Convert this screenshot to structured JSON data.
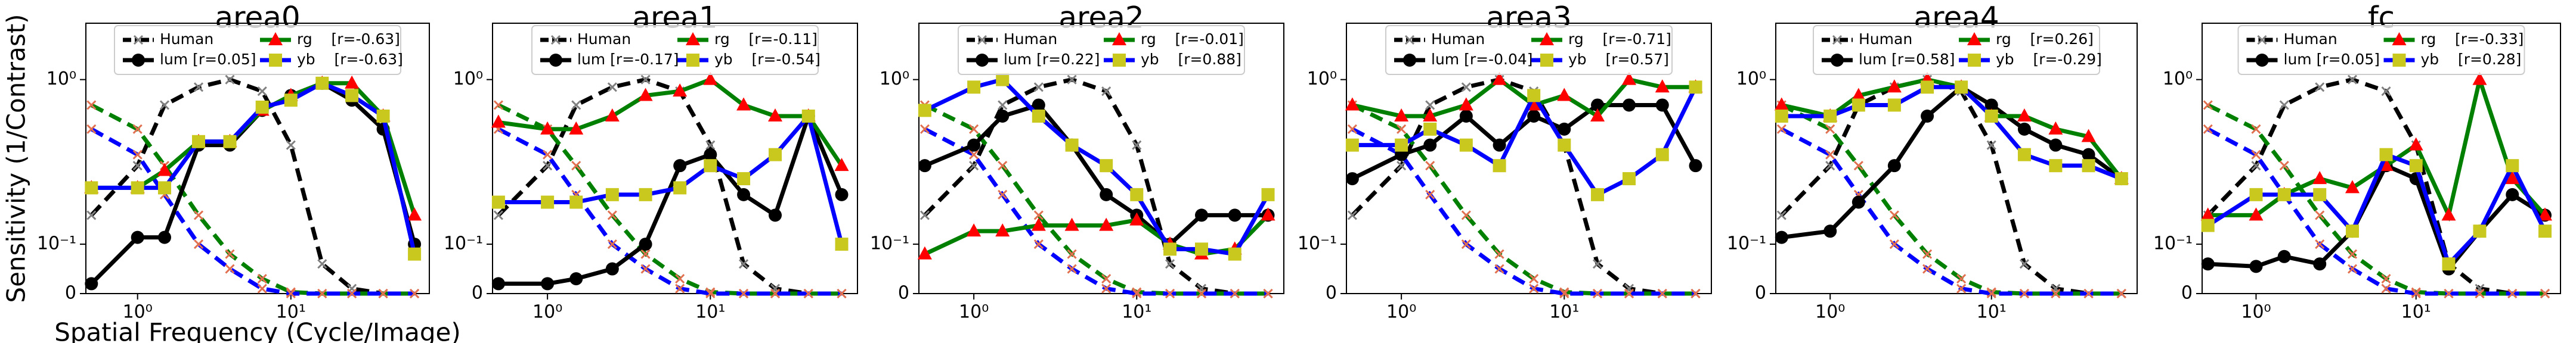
{
  "chart_data": [
    {
      "type": "line",
      "title": "area0",
      "ylabel": "Sensitivity (1/Contrast)",
      "xlabel": "Spatial Frequency (Cycle/Image)",
      "xscale": "log",
      "yscale": "symlog",
      "linthresh": 0.1,
      "legend": "upper center",
      "xlim": [
        0.46,
        80
      ],
      "ylim": [
        0,
        2.2
      ],
      "xticks": [
        {
          "value": 1,
          "label": "10⁰"
        },
        {
          "value": 10,
          "label": "10¹"
        }
      ],
      "yticks": [
        0,
        {
          "value": 0.1,
          "label": "10⁻¹"
        },
        {
          "value": 1,
          "label": "10⁰"
        }
      ],
      "x": [
        0.5,
        1,
        1.5,
        2.5,
        4,
        6.5,
        10,
        16,
        25,
        40,
        64
      ],
      "series": [
        {
          "name": "Human",
          "color": "#000000",
          "marker_color": "#808080",
          "marker": "x",
          "dash": true,
          "values": [
            0.15,
            0.3,
            0.7,
            0.9,
            1.0,
            0.85,
            0.4,
            0.06,
            0.01,
            0,
            0
          ]
        },
        {
          "color": "#008000",
          "marker_color": "#e07050",
          "marker": "x",
          "dash": true,
          "values": [
            0.7,
            0.5,
            0.3,
            0.15,
            0.08,
            0.03,
            0.003,
            0,
            0,
            0,
            0
          ]
        },
        {
          "color": "#0000ff",
          "marker_color": "#e07050",
          "marker": "x",
          "dash": true,
          "values": [
            0.5,
            0.35,
            0.2,
            0.1,
            0.05,
            0.01,
            0,
            0,
            0,
            0,
            0
          ]
        },
        {
          "name": "lum [r=0.05]",
          "color": "#000000",
          "marker_color": "#000000",
          "marker": "o",
          "values": [
            0.02,
            0.11,
            0.11,
            0.4,
            0.4,
            0.65,
            0.8,
            0.95,
            0.75,
            0.5,
            0.1
          ]
        },
        {
          "name": "rg    [r=-0.63]",
          "color": "#008000",
          "marker_color": "#ff0000",
          "marker": "^",
          "values": [
            0.22,
            0.22,
            0.28,
            0.42,
            0.42,
            0.65,
            0.8,
            0.95,
            0.95,
            0.6,
            0.15
          ]
        },
        {
          "name": "yb    [r=-0.63]",
          "color": "#0000ff",
          "marker_color": "#c8c81e",
          "marker": "s",
          "values": [
            0.22,
            0.22,
            0.22,
            0.42,
            0.42,
            0.68,
            0.75,
            0.95,
            0.8,
            0.6,
            0.08
          ]
        }
      ]
    },
    {
      "type": "line",
      "title": "area1",
      "xscale": "log",
      "yscale": "symlog",
      "linthresh": 0.1,
      "legend": "upper center",
      "xlim": [
        0.46,
        80
      ],
      "ylim": [
        0,
        2.2
      ],
      "xticks": [
        {
          "value": 1,
          "label": "10⁰"
        },
        {
          "value": 10,
          "label": "10¹"
        }
      ],
      "yticks": [
        0,
        {
          "value": 0.1,
          "label": "10⁻¹"
        },
        {
          "value": 1,
          "label": "10⁰"
        }
      ],
      "x": [
        0.5,
        1,
        1.5,
        2.5,
        4,
        6.5,
        10,
        16,
        25,
        40,
        64
      ],
      "series": [
        {
          "name": "Human",
          "color": "#000000",
          "marker_color": "#808080",
          "marker": "x",
          "dash": true,
          "values": [
            0.15,
            0.3,
            0.7,
            0.9,
            1.0,
            0.85,
            0.4,
            0.06,
            0.01,
            0,
            0
          ]
        },
        {
          "color": "#008000",
          "marker_color": "#e07050",
          "marker": "x",
          "dash": true,
          "values": [
            0.7,
            0.5,
            0.3,
            0.15,
            0.08,
            0.03,
            0.003,
            0,
            0,
            0,
            0
          ]
        },
        {
          "color": "#0000ff",
          "marker_color": "#e07050",
          "marker": "x",
          "dash": true,
          "values": [
            0.5,
            0.35,
            0.2,
            0.1,
            0.05,
            0.01,
            0,
            0,
            0,
            0,
            0
          ]
        },
        {
          "name": "lum [r=-0.17]",
          "color": "#000000",
          "marker_color": "#000000",
          "marker": "o",
          "values": [
            0.02,
            0.02,
            0.03,
            0.05,
            0.1,
            0.3,
            0.35,
            0.2,
            0.15,
            0.6,
            0.2
          ]
        },
        {
          "name": "rg    [r=-0.11]",
          "color": "#008000",
          "marker_color": "#ff0000",
          "marker": "^",
          "values": [
            0.55,
            0.5,
            0.5,
            0.6,
            0.8,
            0.85,
            1.0,
            0.7,
            0.6,
            0.6,
            0.3
          ]
        },
        {
          "name": "yb    [r=-0.54]",
          "color": "#0000ff",
          "marker_color": "#c8c81e",
          "marker": "s",
          "values": [
            0.18,
            0.18,
            0.18,
            0.2,
            0.2,
            0.22,
            0.3,
            0.25,
            0.35,
            0.6,
            0.1
          ]
        }
      ]
    },
    {
      "type": "line",
      "title": "area2",
      "xscale": "log",
      "yscale": "symlog",
      "linthresh": 0.1,
      "legend": "upper center",
      "xlim": [
        0.46,
        80
      ],
      "ylim": [
        0,
        2.2
      ],
      "xticks": [
        {
          "value": 1,
          "label": "10⁰"
        },
        {
          "value": 10,
          "label": "10¹"
        }
      ],
      "yticks": [
        0,
        {
          "value": 0.1,
          "label": "10⁻¹"
        },
        {
          "value": 1,
          "label": "10⁰"
        }
      ],
      "x": [
        0.5,
        1,
        1.5,
        2.5,
        4,
        6.5,
        10,
        16,
        25,
        40,
        64
      ],
      "series": [
        {
          "name": "Human",
          "color": "#000000",
          "marker_color": "#808080",
          "marker": "x",
          "dash": true,
          "values": [
            0.15,
            0.3,
            0.7,
            0.9,
            1.0,
            0.85,
            0.4,
            0.06,
            0.01,
            0,
            0
          ]
        },
        {
          "color": "#008000",
          "marker_color": "#e07050",
          "marker": "x",
          "dash": true,
          "values": [
            0.7,
            0.5,
            0.3,
            0.15,
            0.08,
            0.03,
            0.003,
            0,
            0,
            0,
            0
          ]
        },
        {
          "color": "#0000ff",
          "marker_color": "#e07050",
          "marker": "x",
          "dash": true,
          "values": [
            0.5,
            0.35,
            0.2,
            0.1,
            0.05,
            0.01,
            0,
            0,
            0,
            0,
            0
          ]
        },
        {
          "name": "lum [r=0.22]",
          "color": "#000000",
          "marker_color": "#000000",
          "marker": "o",
          "values": [
            0.3,
            0.4,
            0.6,
            0.7,
            0.4,
            0.2,
            0.15,
            0.1,
            0.15,
            0.15,
            0.15
          ]
        },
        {
          "name": "rg    [r=-0.01]",
          "color": "#008000",
          "marker_color": "#ff0000",
          "marker": "^",
          "values": [
            0.08,
            0.12,
            0.12,
            0.13,
            0.13,
            0.13,
            0.14,
            0.1,
            0.08,
            0.09,
            0.15
          ]
        },
        {
          "name": "yb    [r=0.88]",
          "color": "#0000ff",
          "marker_color": "#c8c81e",
          "marker": "s",
          "values": [
            0.65,
            0.9,
            1.0,
            0.6,
            0.4,
            0.3,
            0.2,
            0.09,
            0.09,
            0.08,
            0.2
          ]
        }
      ]
    },
    {
      "type": "line",
      "title": "area3",
      "xscale": "log",
      "yscale": "symlog",
      "linthresh": 0.1,
      "legend": "upper center",
      "xlim": [
        0.46,
        80
      ],
      "ylim": [
        0,
        2.2
      ],
      "xticks": [
        {
          "value": 1,
          "label": "10⁰"
        },
        {
          "value": 10,
          "label": "10¹"
        }
      ],
      "yticks": [
        0,
        {
          "value": 0.1,
          "label": "10⁻¹"
        },
        {
          "value": 1,
          "label": "10⁰"
        }
      ],
      "x": [
        0.5,
        1,
        1.5,
        2.5,
        4,
        6.5,
        10,
        16,
        25,
        40,
        64
      ],
      "series": [
        {
          "name": "Human",
          "color": "#000000",
          "marker_color": "#808080",
          "marker": "x",
          "dash": true,
          "values": [
            0.15,
            0.3,
            0.7,
            0.9,
            1.0,
            0.85,
            0.4,
            0.06,
            0.01,
            0,
            0
          ]
        },
        {
          "color": "#008000",
          "marker_color": "#e07050",
          "marker": "x",
          "dash": true,
          "values": [
            0.7,
            0.5,
            0.3,
            0.15,
            0.08,
            0.03,
            0.003,
            0,
            0,
            0,
            0
          ]
        },
        {
          "color": "#0000ff",
          "marker_color": "#e07050",
          "marker": "x",
          "dash": true,
          "values": [
            0.5,
            0.35,
            0.2,
            0.1,
            0.05,
            0.01,
            0,
            0,
            0,
            0,
            0
          ]
        },
        {
          "name": "lum [r=-0.04]",
          "color": "#000000",
          "marker_color": "#000000",
          "marker": "o",
          "values": [
            0.25,
            0.35,
            0.4,
            0.6,
            0.4,
            0.6,
            0.5,
            0.7,
            0.7,
            0.7,
            0.3
          ]
        },
        {
          "name": "rg    [r=-0.71]",
          "color": "#008000",
          "marker_color": "#ff0000",
          "marker": "^",
          "values": [
            0.7,
            0.6,
            0.6,
            0.7,
            1.0,
            0.7,
            0.8,
            0.6,
            1.0,
            0.9,
            0.9
          ]
        },
        {
          "name": "yb    [r=0.57]",
          "color": "#0000ff",
          "marker_color": "#c8c81e",
          "marker": "s",
          "values": [
            0.4,
            0.4,
            0.5,
            0.4,
            0.3,
            0.8,
            0.4,
            0.2,
            0.25,
            0.35,
            0.9
          ]
        }
      ]
    },
    {
      "type": "line",
      "title": "area4",
      "xscale": "log",
      "yscale": "symlog",
      "linthresh": 0.1,
      "legend": "upper center",
      "xlim": [
        0.46,
        80
      ],
      "ylim": [
        0,
        2.2
      ],
      "xticks": [
        {
          "value": 1,
          "label": "10⁰"
        },
        {
          "value": 10,
          "label": "10¹"
        }
      ],
      "yticks": [
        0,
        {
          "value": 0.1,
          "label": "10⁻¹"
        },
        {
          "value": 1,
          "label": "10⁰"
        }
      ],
      "x": [
        0.5,
        1,
        1.5,
        2.5,
        4,
        6.5,
        10,
        16,
        25,
        40,
        64
      ],
      "series": [
        {
          "name": "Human",
          "color": "#000000",
          "marker_color": "#808080",
          "marker": "x",
          "dash": true,
          "values": [
            0.15,
            0.3,
            0.7,
            0.9,
            1.0,
            0.85,
            0.4,
            0.06,
            0.01,
            0,
            0
          ]
        },
        {
          "color": "#008000",
          "marker_color": "#e07050",
          "marker": "x",
          "dash": true,
          "values": [
            0.7,
            0.5,
            0.3,
            0.15,
            0.08,
            0.03,
            0.003,
            0,
            0,
            0,
            0
          ]
        },
        {
          "color": "#0000ff",
          "marker_color": "#e07050",
          "marker": "x",
          "dash": true,
          "values": [
            0.5,
            0.35,
            0.2,
            0.1,
            0.05,
            0.01,
            0,
            0,
            0,
            0,
            0
          ]
        },
        {
          "name": "lum [r=0.58]",
          "color": "#000000",
          "marker_color": "#000000",
          "marker": "o",
          "values": [
            0.11,
            0.12,
            0.18,
            0.3,
            0.6,
            0.9,
            0.7,
            0.5,
            0.4,
            0.35,
            0.25
          ]
        },
        {
          "name": "rg    [r=0.26]",
          "color": "#008000",
          "marker_color": "#ff0000",
          "marker": "^",
          "values": [
            0.7,
            0.6,
            0.8,
            0.9,
            1.0,
            0.9,
            0.6,
            0.6,
            0.5,
            0.45,
            0.25
          ]
        },
        {
          "name": "yb    [r=-0.29]",
          "color": "#0000ff",
          "marker_color": "#c8c81e",
          "marker": "s",
          "values": [
            0.6,
            0.6,
            0.7,
            0.7,
            0.9,
            0.9,
            0.6,
            0.35,
            0.3,
            0.3,
            0.25
          ]
        }
      ]
    },
    {
      "type": "line",
      "title": "fc",
      "xscale": "log",
      "yscale": "symlog",
      "linthresh": 0.1,
      "legend": "upper center",
      "xlim": [
        0.46,
        80
      ],
      "ylim": [
        0,
        2.2
      ],
      "xticks": [
        {
          "value": 1,
          "label": "10⁰"
        },
        {
          "value": 10,
          "label": "10¹"
        }
      ],
      "yticks": [
        0,
        {
          "value": 0.1,
          "label": "10⁻¹"
        },
        {
          "value": 1,
          "label": "10⁰"
        }
      ],
      "x": [
        0.5,
        1,
        1.5,
        2.5,
        4,
        6.5,
        10,
        16,
        25,
        40,
        64
      ],
      "series": [
        {
          "name": "Human",
          "color": "#000000",
          "marker_color": "#808080",
          "marker": "x",
          "dash": true,
          "values": [
            0.15,
            0.3,
            0.7,
            0.9,
            1.0,
            0.85,
            0.4,
            0.06,
            0.01,
            0,
            0
          ]
        },
        {
          "color": "#008000",
          "marker_color": "#e07050",
          "marker": "x",
          "dash": true,
          "values": [
            0.7,
            0.5,
            0.3,
            0.15,
            0.08,
            0.03,
            0.003,
            0,
            0,
            0,
            0
          ]
        },
        {
          "color": "#0000ff",
          "marker_color": "#e07050",
          "marker": "x",
          "dash": true,
          "values": [
            0.5,
            0.35,
            0.2,
            0.1,
            0.05,
            0.01,
            0,
            0,
            0,
            0,
            0
          ]
        },
        {
          "name": "lum [r=0.05]",
          "color": "#000000",
          "marker_color": "#000000",
          "marker": "o",
          "values": [
            0.06,
            0.055,
            0.075,
            0.06,
            0.12,
            0.3,
            0.25,
            0.05,
            0.12,
            0.2,
            0.15
          ]
        },
        {
          "name": "rg    [r=-0.33]",
          "color": "#008000",
          "marker_color": "#ff0000",
          "marker": "^",
          "values": [
            0.15,
            0.15,
            0.2,
            0.25,
            0.22,
            0.3,
            0.4,
            0.15,
            1.0,
            0.25,
            0.15
          ]
        },
        {
          "name": "yb    [r=0.28]",
          "color": "#0000ff",
          "marker_color": "#c8c81e",
          "marker": "s",
          "values": [
            0.13,
            0.2,
            0.2,
            0.2,
            0.12,
            0.35,
            0.3,
            0.06,
            0.12,
            0.3,
            0.12
          ]
        }
      ]
    }
  ]
}
